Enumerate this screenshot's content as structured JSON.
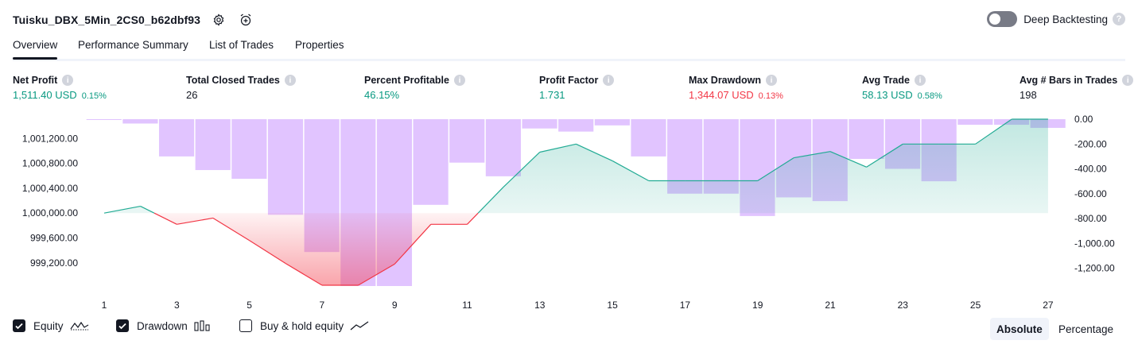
{
  "header": {
    "strategy_name": "Tuisku_DBX_5Min_2CS0_b62dbf93",
    "deep_backtesting_label": "Deep Backtesting",
    "deep_backtesting_on": false
  },
  "tabs": [
    "Overview",
    "Performance Summary",
    "List of Trades",
    "Properties"
  ],
  "active_tab": "Overview",
  "metrics": [
    {
      "label": "Net Profit",
      "value": "1,511.40 USD",
      "pct": "0.15%",
      "color": "#089981"
    },
    {
      "label": "Total Closed Trades",
      "value": "26",
      "pct": "",
      "color": "#131722"
    },
    {
      "label": "Percent Profitable",
      "value": "46.15%",
      "pct": "",
      "color": "#089981"
    },
    {
      "label": "Profit Factor",
      "value": "1.731",
      "pct": "",
      "color": "#089981"
    },
    {
      "label": "Max Drawdown",
      "value": "1,344.07 USD",
      "pct": "0.13%",
      "color": "#f23645"
    },
    {
      "label": "Avg Trade",
      "value": "58.13 USD",
      "pct": "0.58%",
      "color": "#089981"
    },
    {
      "label": "Avg # Bars in Trades",
      "value": "198",
      "pct": "",
      "color": "#131722"
    }
  ],
  "chart_data": {
    "type": "line",
    "x": [
      1,
      2,
      3,
      4,
      5,
      6,
      7,
      8,
      9,
      10,
      11,
      12,
      13,
      14,
      15,
      16,
      17,
      18,
      19,
      20,
      21,
      22,
      23,
      24,
      25,
      26,
      27
    ],
    "x_tick_labels": [
      "1",
      "3",
      "5",
      "7",
      "9",
      "11",
      "13",
      "15",
      "17",
      "19",
      "21",
      "23",
      "25",
      "27"
    ],
    "equity_baseline": 1000000,
    "series": [
      {
        "name": "Equity",
        "axis": "left",
        "values": [
          1000000,
          1000110,
          999820,
          999920,
          999560,
          999190,
          998840,
          998840,
          999180,
          999820,
          999820,
          1000420,
          1000980,
          1001110,
          1000840,
          1000520,
          1000520,
          1000520,
          1000520,
          1000890,
          1000990,
          1000740,
          1001110,
          1001110,
          1001110,
          1001510,
          1001510
        ]
      },
      {
        "name": "Drawdown",
        "axis": "right",
        "values": [
          -5,
          -35,
          -300,
          -410,
          -480,
          -770,
          -1070,
          -1344,
          -1344,
          -690,
          -350,
          -460,
          -75,
          -100,
          -50,
          -300,
          -600,
          -600,
          -780,
          -630,
          -660,
          -320,
          -400,
          -500,
          -45,
          -45,
          -70
        ]
      }
    ],
    "y_left_ticks": [
      "1,001,200.00",
      "1,000,800.00",
      "1,000,400.00",
      "1,000,000.00",
      "999,600.00",
      "999,200.00"
    ],
    "y_left_tick_values": [
      1001200,
      1000800,
      1000400,
      1000000,
      999600,
      999200
    ],
    "y_right_ticks": [
      "0.00",
      "-200.00",
      "-400.00",
      "-600.00",
      "-800.00",
      "-1,000.00",
      "-1,200.00"
    ],
    "y_right_tick_values": [
      0,
      -200,
      -400,
      -600,
      -800,
      -1000,
      -1200
    ],
    "ylim_left": [
      998840,
      1001510
    ],
    "ylim_right": [
      -1344,
      0
    ],
    "colors": {
      "drawdown": "#e1c4ff",
      "equity_up": "#22ab94",
      "equity_down": "#f23645"
    }
  },
  "legend": [
    {
      "label": "Equity",
      "checked": true,
      "icon": "equity-line-icon"
    },
    {
      "label": "Drawdown",
      "checked": true,
      "icon": "drawdown-bars-icon"
    },
    {
      "label": "Buy & hold equity",
      "checked": false,
      "icon": "buy-hold-line-icon"
    }
  ],
  "modes": [
    "Absolute",
    "Percentage"
  ],
  "active_mode": "Absolute"
}
